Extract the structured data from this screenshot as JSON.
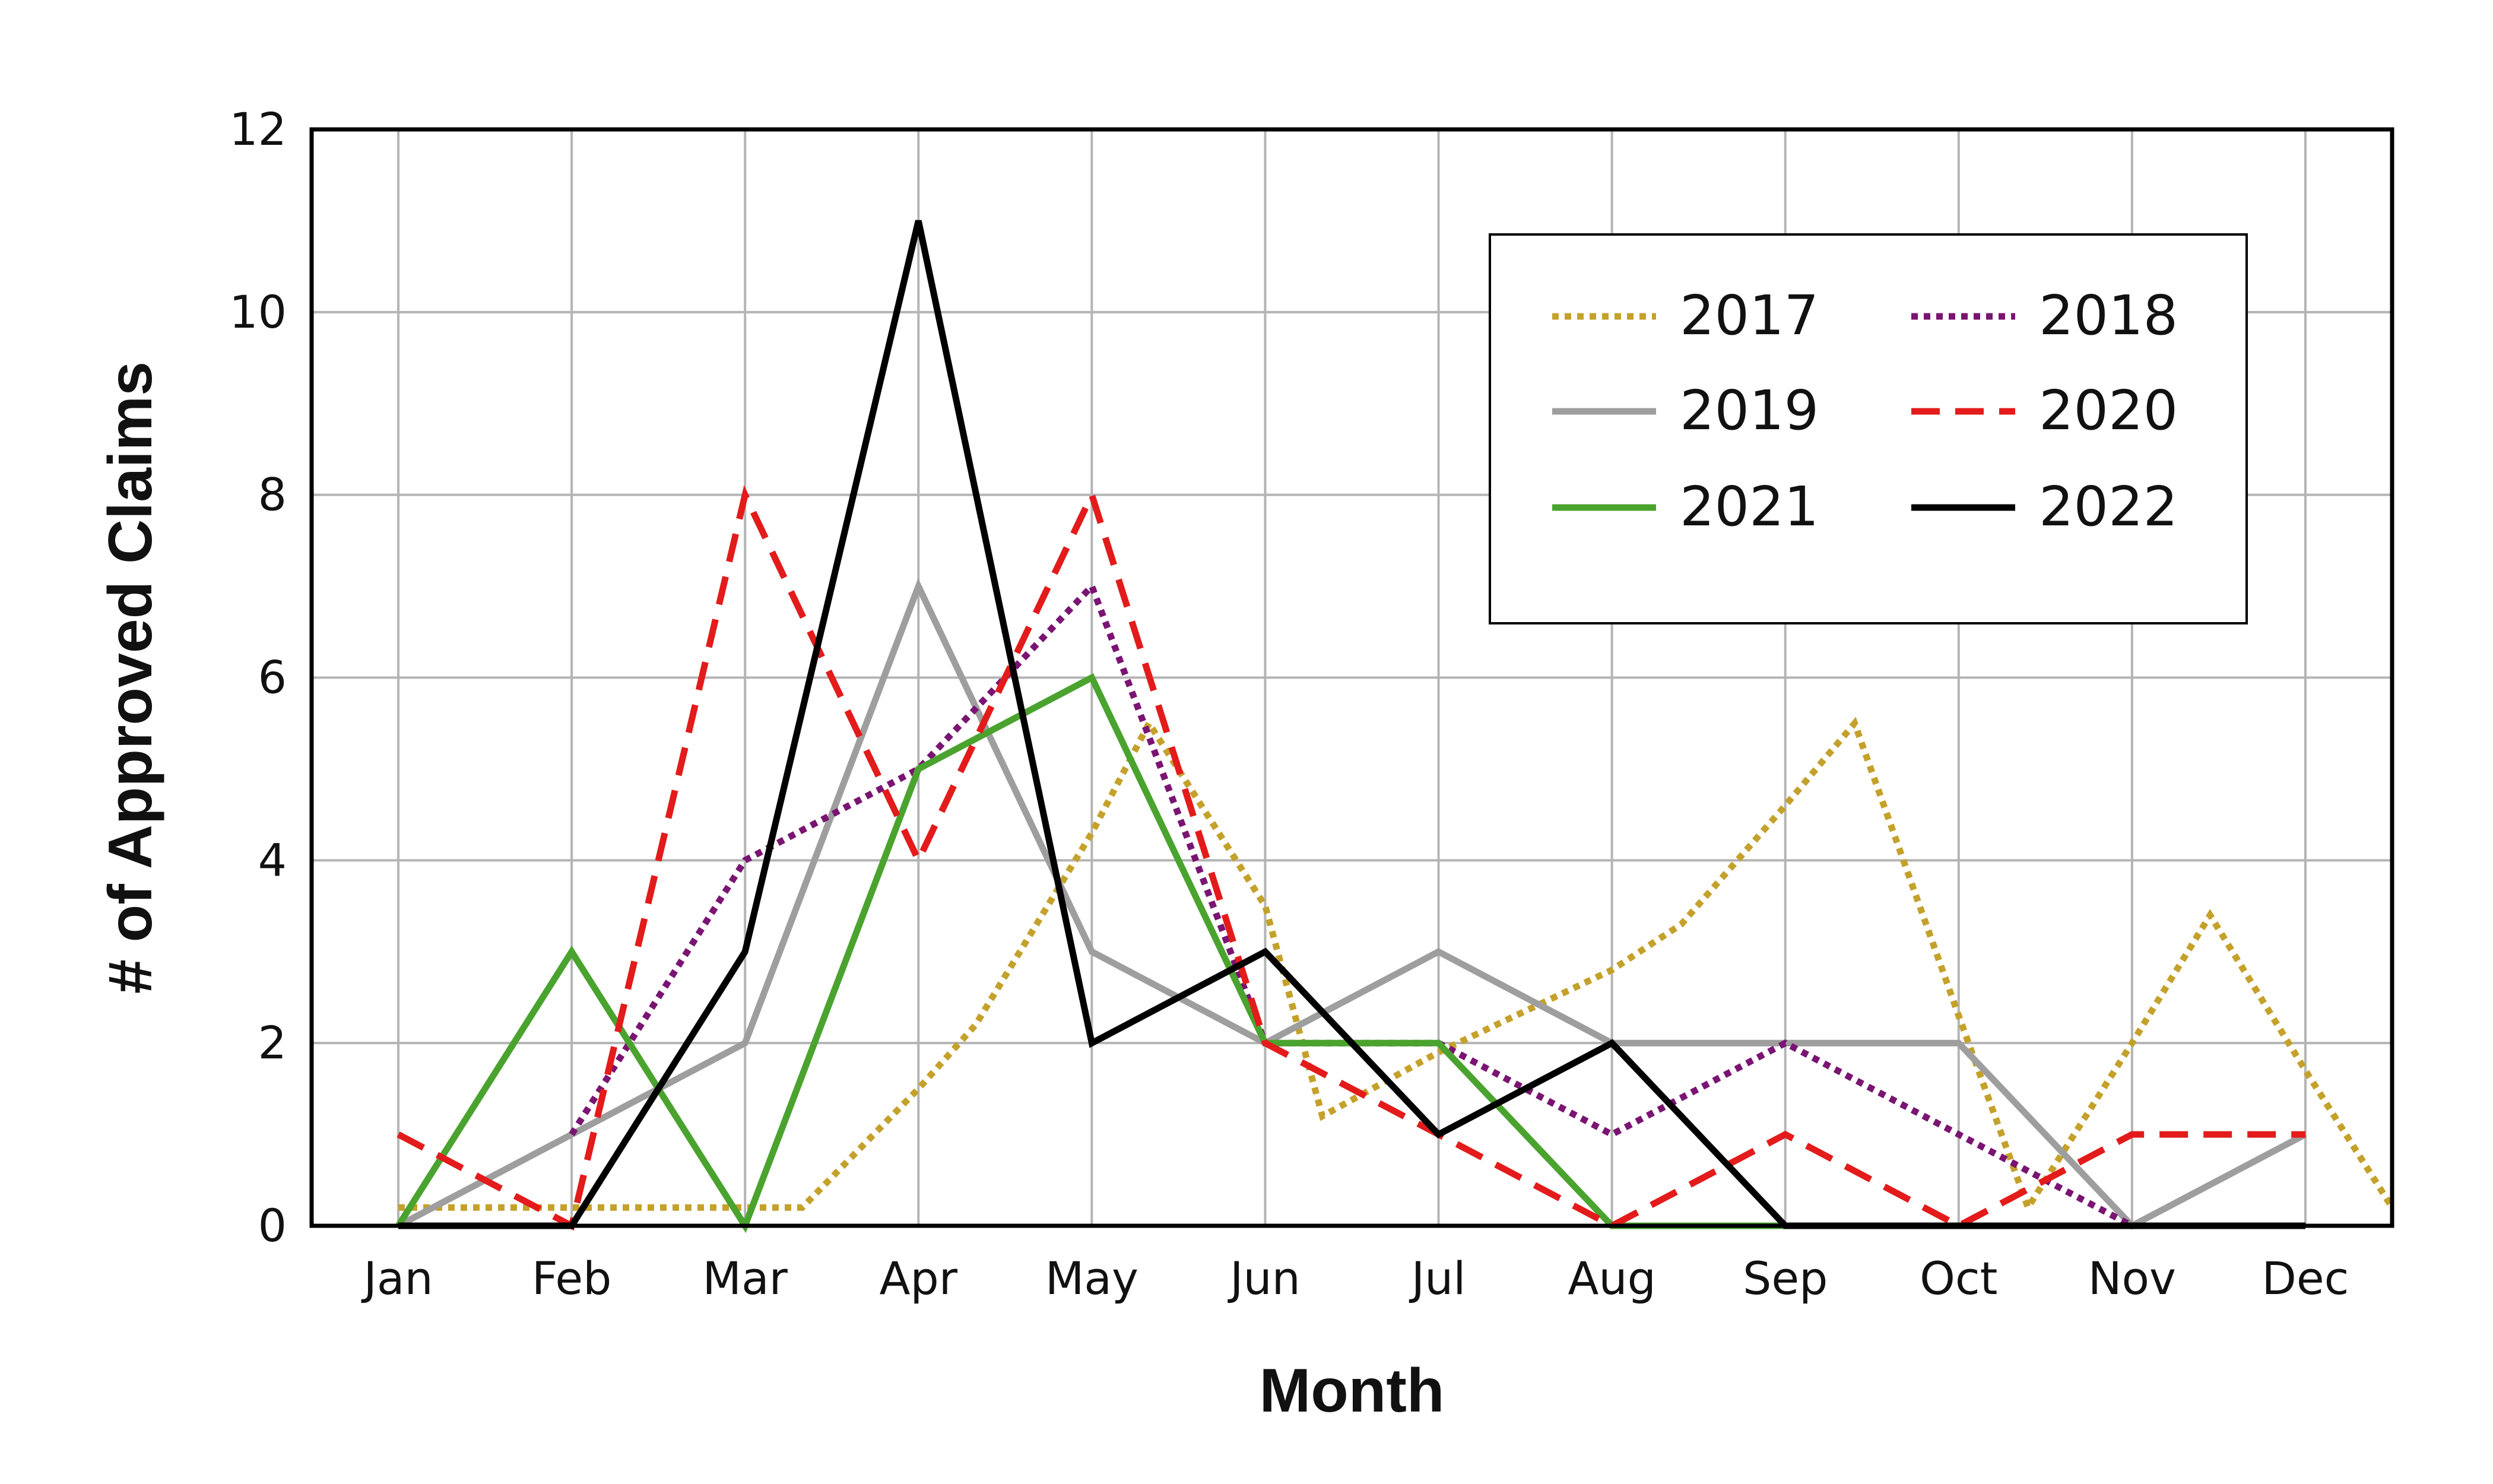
{
  "chart_data": {
    "type": "line",
    "title": "",
    "xlabel": "Month",
    "ylabel": "# of Approved Claims",
    "categories": [
      "Jan",
      "Feb",
      "Mar",
      "Apr",
      "May",
      "Jun",
      "Jul",
      "Aug",
      "Sep",
      "Oct",
      "Nov",
      "Dec"
    ],
    "x_extent_months": [
      -0.5,
      11.5
    ],
    "ylim": [
      0,
      12
    ],
    "yticks": [
      0,
      2,
      4,
      6,
      8,
      10,
      12
    ],
    "grid": true,
    "legend_position": "top-right",
    "series": [
      {
        "name": "2017",
        "color": "#c4a12a",
        "style": "dotted",
        "points": [
          [
            0,
            0.2
          ],
          [
            1,
            0.2
          ],
          [
            2,
            0.2
          ],
          [
            2.33,
            0.2
          ],
          [
            3,
            1.5
          ],
          [
            3.33,
            2.2
          ],
          [
            4,
            4.3
          ],
          [
            4.33,
            5.5
          ],
          [
            5,
            3.5
          ],
          [
            5.33,
            1.2
          ],
          [
            6,
            1.9
          ],
          [
            7,
            2.8
          ],
          [
            7.4,
            3.3
          ],
          [
            8,
            4.6
          ],
          [
            8.4,
            5.5
          ],
          [
            9,
            2.3
          ],
          [
            9.4,
            0.2
          ],
          [
            10,
            2.0
          ],
          [
            10.45,
            3.4
          ],
          [
            11,
            1.7
          ],
          [
            11.5,
            0.2
          ]
        ]
      },
      {
        "name": "2018",
        "color": "#7a1472",
        "style": "dotted",
        "points": [
          [
            1,
            1.0
          ],
          [
            2,
            4.0
          ],
          [
            3,
            5.0
          ],
          [
            4,
            7.0
          ],
          [
            5,
            2.0
          ],
          [
            6,
            2.0
          ],
          [
            7,
            1.0
          ],
          [
            8,
            2.0
          ],
          [
            9,
            1.0
          ],
          [
            10,
            0.0
          ]
        ]
      },
      {
        "name": "2019",
        "color": "#9e9e9e",
        "style": "solid",
        "points": [
          [
            0,
            0
          ],
          [
            1,
            1
          ],
          [
            2,
            2
          ],
          [
            3,
            7
          ],
          [
            4,
            3
          ],
          [
            5,
            2
          ],
          [
            6,
            3
          ],
          [
            7,
            2
          ],
          [
            8,
            2
          ],
          [
            9,
            2
          ],
          [
            10,
            0
          ],
          [
            11,
            1
          ]
        ]
      },
      {
        "name": "2020",
        "color": "#e31b1b",
        "style": "dashed",
        "points": [
          [
            0,
            1
          ],
          [
            1,
            0
          ],
          [
            2,
            8
          ],
          [
            3,
            4
          ],
          [
            4,
            8
          ],
          [
            5,
            2
          ],
          [
            6,
            1
          ],
          [
            7,
            0
          ],
          [
            8,
            1
          ],
          [
            9,
            0
          ],
          [
            10,
            1
          ],
          [
            11,
            1
          ]
        ]
      },
      {
        "name": "2021",
        "color": "#4aa32e",
        "style": "solid",
        "points": [
          [
            0,
            0
          ],
          [
            1,
            3
          ],
          [
            2,
            0
          ],
          [
            3,
            5
          ],
          [
            4,
            6
          ],
          [
            5,
            2
          ],
          [
            6,
            2
          ],
          [
            7,
            0
          ],
          [
            8,
            0
          ],
          [
            9,
            0
          ],
          [
            10,
            0
          ],
          [
            11,
            0
          ]
        ]
      },
      {
        "name": "2022",
        "color": "#000000",
        "style": "solid",
        "points": [
          [
            0,
            0
          ],
          [
            1,
            0
          ],
          [
            2,
            3
          ],
          [
            3,
            11
          ],
          [
            4,
            2
          ],
          [
            5,
            3
          ],
          [
            6,
            1
          ],
          [
            7,
            2
          ],
          [
            8,
            0
          ],
          [
            9,
            0
          ],
          [
            10,
            0
          ],
          [
            11,
            0
          ]
        ]
      }
    ]
  }
}
